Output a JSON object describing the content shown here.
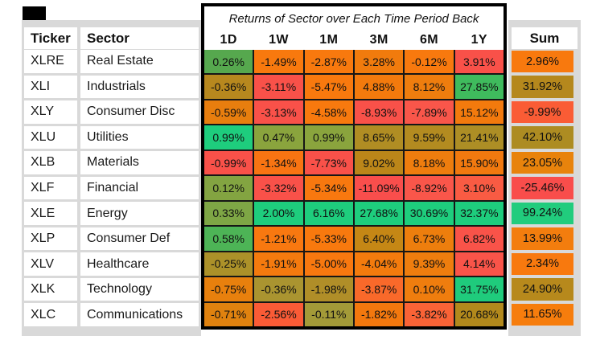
{
  "title": "Returns of Sector over Each Time Period Back",
  "columns": {
    "ticker": "Ticker",
    "sector": "Sector",
    "periods": [
      "1D",
      "1W",
      "1M",
      "3M",
      "6M",
      "1Y"
    ],
    "sum": "Sum"
  },
  "rows": [
    {
      "ticker": "XLRE",
      "sector": "Real Estate",
      "values": [
        "0.26%",
        "-1.49%",
        "-2.87%",
        "3.28%",
        "-0.12%",
        "3.91%"
      ],
      "colors": [
        "#56a84e",
        "#f8790e",
        "#f8790e",
        "#f17b0d",
        "#f8790e",
        "#f95149"
      ],
      "sum": "2.96%",
      "sum_color": "#f8790e"
    },
    {
      "ticker": "XLI",
      "sector": "Industrials",
      "values": [
        "-0.36%",
        "-3.11%",
        "-5.47%",
        "4.88%",
        "8.12%",
        "27.85%"
      ],
      "colors": [
        "#b7881e",
        "#f95149",
        "#f8790e",
        "#f37a0d",
        "#ee7d0e",
        "#3fbb5d"
      ],
      "sum": "31.92%",
      "sum_color": "#b5881d"
    },
    {
      "ticker": "XLY",
      "sector": "Consumer Disc",
      "values": [
        "-0.59%",
        "-3.13%",
        "-4.58%",
        "-8.93%",
        "-7.89%",
        "15.12%"
      ],
      "colors": [
        "#e87e0e",
        "#f95149",
        "#f8790e",
        "#f95149",
        "#f9564a",
        "#f37a0d"
      ],
      "sum": "-9.99%",
      "sum_color": "#fa5c35"
    },
    {
      "ticker": "XLU",
      "sector": "Utilities",
      "values": [
        "0.99%",
        "0.47%",
        "0.99%",
        "8.65%",
        "9.59%",
        "21.41%"
      ],
      "colors": [
        "#1ecd7d",
        "#8aa43d",
        "#8aa43d",
        "#b08d23",
        "#b38b20",
        "#ad8e25"
      ],
      "sum": "42.10%",
      "sum_color": "#ad8c22"
    },
    {
      "ticker": "XLB",
      "sector": "Materials",
      "values": [
        "-0.99%",
        "-1.34%",
        "-7.73%",
        "9.02%",
        "8.18%",
        "15.90%"
      ],
      "colors": [
        "#f95149",
        "#f87412",
        "#f95149",
        "#bb8619",
        "#ee7d0e",
        "#f1790f"
      ],
      "sum": "23.05%",
      "sum_color": "#e8830c"
    },
    {
      "ticker": "XLF",
      "sector": "Financial",
      "values": [
        "0.12%",
        "-3.32%",
        "-5.34%",
        "-11.09%",
        "-8.92%",
        "3.10%"
      ],
      "colors": [
        "#83a441",
        "#f95149",
        "#f8780f",
        "#f94e4c",
        "#f9564a",
        "#f95b43"
      ],
      "sum": "-25.46%",
      "sum_color": "#f94d4b"
    },
    {
      "ticker": "XLE",
      "sector": "Energy",
      "values": [
        "0.33%",
        "2.00%",
        "6.16%",
        "27.68%",
        "30.69%",
        "32.37%"
      ],
      "colors": [
        "#7ea645",
        "#1ecd7d",
        "#1ecd7d",
        "#1ecd7d",
        "#1ecd7d",
        "#1ecd7d"
      ],
      "sum": "99.24%",
      "sum_color": "#21cc7d"
    },
    {
      "ticker": "XLP",
      "sector": "Consumer Def",
      "values": [
        "0.58%",
        "-1.21%",
        "-5.33%",
        "6.40%",
        "6.73%",
        "6.82%"
      ],
      "colors": [
        "#4db456",
        "#f87810",
        "#f8790e",
        "#c58715",
        "#ed7e0d",
        "#f95349"
      ],
      "sum": "13.99%",
      "sum_color": "#f37d0e"
    },
    {
      "ticker": "XLV",
      "sector": "Healthcare",
      "values": [
        "-0.25%",
        "-1.91%",
        "-5.00%",
        "-4.04%",
        "9.39%",
        "4.14%"
      ],
      "colors": [
        "#ac9129",
        "#f47a0e",
        "#f8780f",
        "#f47b0d",
        "#ee7d0e",
        "#f95449"
      ],
      "sum": "2.34%",
      "sum_color": "#f8790e"
    },
    {
      "ticker": "XLK",
      "sector": "Technology",
      "values": [
        "-0.75%",
        "-0.36%",
        "-1.98%",
        "-3.87%",
        "0.10%",
        "31.75%"
      ],
      "colors": [
        "#e8800d",
        "#aa9430",
        "#b08e28",
        "#f9692a",
        "#ef7d0e",
        "#1fcb7c"
      ],
      "sum": "24.90%",
      "sum_color": "#b7891c"
    },
    {
      "ticker": "XLC",
      "sector": "Communications",
      "values": [
        "-0.71%",
        "-2.56%",
        "-0.11%",
        "-1.82%",
        "-3.82%",
        "20.68%"
      ],
      "colors": [
        "#e0820f",
        "#fa5b36",
        "#a39a38",
        "#f3780e",
        "#f96336",
        "#b2891c"
      ],
      "sum": "11.65%",
      "sum_color": "#f67d0d"
    }
  ],
  "colors": {
    "backdrop": "#d9d9d9",
    "grid_line": "#161616",
    "border": "#000000",
    "positive_strong": "#1ecd7d",
    "positive": "#56a84e",
    "neutral": "#b28c20",
    "negative": "#f8790e",
    "negative_strong": "#f95149"
  },
  "chart_data": {
    "type": "heatmap",
    "title": "Returns of Sector over Each Time Period Back",
    "columns": [
      "1D",
      "1W",
      "1M",
      "3M",
      "6M",
      "1Y",
      "Sum"
    ],
    "rows": [
      "XLRE Real Estate",
      "XLI Industrials",
      "XLY Consumer Disc",
      "XLU Utilities",
      "XLB Materials",
      "XLF Financial",
      "XLE Energy",
      "XLP Consumer Def",
      "XLV Healthcare",
      "XLK Technology",
      "XLC Communications"
    ],
    "values_pct": [
      [
        0.26,
        -1.49,
        -2.87,
        3.28,
        -0.12,
        3.91,
        2.96
      ],
      [
        -0.36,
        -3.11,
        -5.47,
        4.88,
        8.12,
        27.85,
        31.92
      ],
      [
        -0.59,
        -3.13,
        -4.58,
        -8.93,
        -7.89,
        15.12,
        -9.99
      ],
      [
        0.99,
        0.47,
        0.99,
        8.65,
        9.59,
        21.41,
        42.1
      ],
      [
        -0.99,
        -1.34,
        -7.73,
        9.02,
        8.18,
        15.9,
        23.05
      ],
      [
        0.12,
        -3.32,
        -5.34,
        -11.09,
        -8.92,
        3.1,
        -25.46
      ],
      [
        0.33,
        2.0,
        6.16,
        27.68,
        30.69,
        32.37,
        99.24
      ],
      [
        0.58,
        -1.21,
        -5.33,
        6.4,
        6.73,
        6.82,
        13.99
      ],
      [
        -0.25,
        -1.91,
        -5.0,
        -4.04,
        9.39,
        4.14,
        2.34
      ],
      [
        -0.75,
        -0.36,
        -1.98,
        -3.87,
        0.1,
        31.75,
        24.9
      ],
      [
        -0.71,
        -2.56,
        -0.11,
        -1.82,
        -3.82,
        20.68,
        11.65
      ]
    ],
    "color_scale": "red (worst) to orange to olive to green (best), ranked per table"
  }
}
